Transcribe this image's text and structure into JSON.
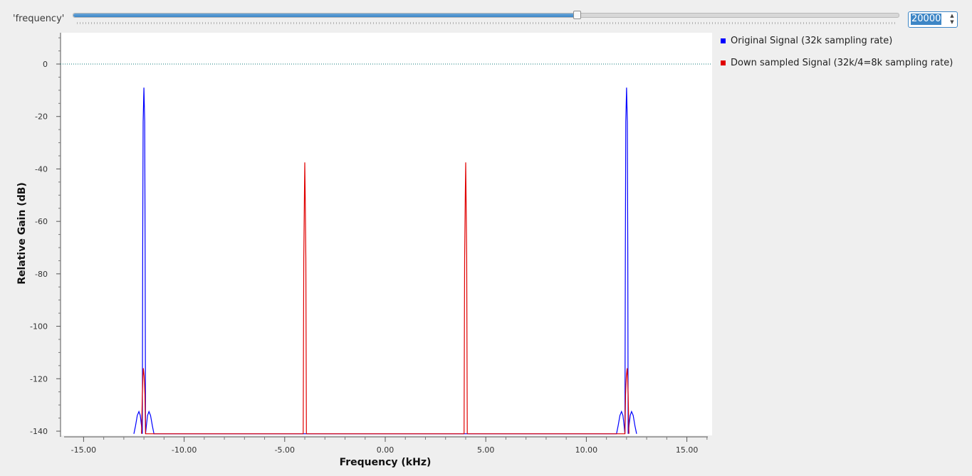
{
  "slider": {
    "label": "'frequency'",
    "value": 20000,
    "fraction": 0.61
  },
  "spinbox": {
    "value": "20000",
    "up_icon": "arrow-up-icon",
    "down_icon": "arrow-down-icon"
  },
  "chart_data": {
    "type": "line",
    "title": "",
    "xlabel": "Frequency (kHz)",
    "ylabel": "Relative Gain (dB)",
    "xlim": [
      -16.0,
      16.0
    ],
    "ylim": [
      -141,
      11
    ],
    "x_ticks": [
      -15,
      -10,
      -5,
      0,
      5,
      10,
      15
    ],
    "x_tick_labels": [
      "-15.00",
      "-10.00",
      "-5.00",
      "0.00",
      "5.00",
      "10.00",
      "15.00"
    ],
    "y_ticks": [
      0,
      -20,
      -40,
      -60,
      -80,
      -100,
      -120,
      -140
    ],
    "y_tick_labels": [
      "0",
      "-20",
      "-40",
      "-60",
      "-80",
      "-100",
      "-120",
      "-140"
    ],
    "reference_line": {
      "y": 0,
      "color": "#0d7a7a",
      "style": "dotted"
    },
    "grid": false,
    "legend_position": "right",
    "series": [
      {
        "name": "Original Signal (32k sampling rate)",
        "color": "#0000ff",
        "points": [
          [
            -12.5,
            -141
          ],
          [
            -12.42,
            -138
          ],
          [
            -12.33,
            -134
          ],
          [
            -12.25,
            -132.5
          ],
          [
            -12.18,
            -134
          ],
          [
            -12.12,
            -138
          ],
          [
            -12.08,
            -141
          ],
          [
            -12.06,
            -70
          ],
          [
            -12.04,
            -22
          ],
          [
            -12.0,
            -9
          ],
          [
            -11.96,
            -22
          ],
          [
            -11.94,
            -70
          ],
          [
            -11.92,
            -141
          ],
          [
            -11.88,
            -138
          ],
          [
            -11.82,
            -134
          ],
          [
            -11.75,
            -132.5
          ],
          [
            -11.67,
            -134
          ],
          [
            -11.58,
            -138
          ],
          [
            -11.5,
            -141
          ],
          [
            11.5,
            -141
          ],
          [
            11.58,
            -138
          ],
          [
            11.67,
            -134
          ],
          [
            11.75,
            -132.5
          ],
          [
            11.82,
            -134
          ],
          [
            11.88,
            -138
          ],
          [
            11.92,
            -141
          ],
          [
            11.94,
            -70
          ],
          [
            11.96,
            -22
          ],
          [
            12.0,
            -9
          ],
          [
            12.04,
            -22
          ],
          [
            12.06,
            -70
          ],
          [
            12.08,
            -141
          ],
          [
            12.12,
            -138
          ],
          [
            12.18,
            -134
          ],
          [
            12.25,
            -132.5
          ],
          [
            12.33,
            -134
          ],
          [
            12.42,
            -138
          ],
          [
            12.5,
            -141
          ]
        ]
      },
      {
        "name": "Down sampled Signal (32k/4=8k sampling rate)",
        "color": "#e00000",
        "points": [
          [
            -12.12,
            -141
          ],
          [
            -12.08,
            -126
          ],
          [
            -12.05,
            -119
          ],
          [
            -12.03,
            -116
          ],
          [
            -11.99,
            -119
          ],
          [
            -11.95,
            -126
          ],
          [
            -11.92,
            -141
          ],
          [
            -4.08,
            -141
          ],
          [
            -4.05,
            -74
          ],
          [
            -4.02,
            -50
          ],
          [
            -4.0,
            -37.5
          ],
          [
            -3.98,
            -50
          ],
          [
            -3.95,
            -74
          ],
          [
            -3.92,
            -141
          ],
          [
            3.92,
            -141
          ],
          [
            3.95,
            -74
          ],
          [
            3.98,
            -50
          ],
          [
            4.0,
            -37.5
          ],
          [
            4.02,
            -50
          ],
          [
            4.05,
            -74
          ],
          [
            4.08,
            -141
          ],
          [
            11.92,
            -141
          ],
          [
            11.95,
            -126
          ],
          [
            11.99,
            -119
          ],
          [
            12.03,
            -116
          ],
          [
            12.05,
            -119
          ],
          [
            12.08,
            -126
          ],
          [
            12.12,
            -141
          ]
        ]
      }
    ]
  }
}
